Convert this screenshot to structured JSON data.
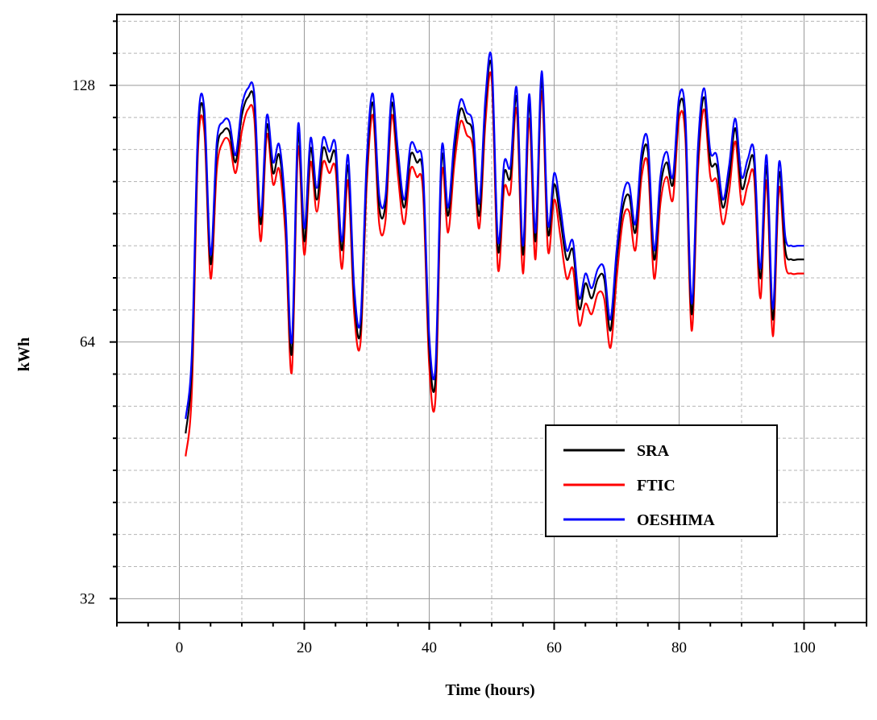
{
  "chart_data": {
    "type": "line",
    "title": "",
    "xlabel": "Time (hours)",
    "ylabel": "kWh",
    "xlim": [
      -10,
      110
    ],
    "ylim": [
      30,
      155
    ],
    "y_scale": "log2",
    "x_ticks": [
      "0",
      "20",
      "40",
      "60",
      "80",
      "100"
    ],
    "y_ticks": [
      "32",
      "64",
      "128"
    ],
    "grid": true,
    "legend_position": "bottom-right",
    "x": [
      1,
      2,
      3,
      4,
      5,
      6,
      7,
      8,
      9,
      10,
      11,
      12,
      13,
      14,
      15,
      16,
      17,
      18,
      19,
      20,
      21,
      22,
      23,
      24,
      25,
      26,
      27,
      28,
      29,
      30,
      31,
      32,
      33,
      34,
      35,
      36,
      37,
      38,
      39,
      40,
      41,
      42,
      43,
      44,
      45,
      46,
      47,
      48,
      49,
      50,
      51,
      52,
      53,
      54,
      55,
      56,
      57,
      58,
      59,
      60,
      61,
      62,
      63,
      64,
      65,
      66,
      67,
      68,
      69,
      70,
      71,
      72,
      73,
      74,
      75,
      76,
      77,
      78,
      79,
      80,
      81,
      82,
      83,
      84,
      85,
      86,
      87,
      88,
      89,
      90,
      91,
      92,
      93,
      94,
      95,
      96,
      97,
      98,
      99,
      100
    ],
    "series": [
      {
        "name": "SRA",
        "color": "#000000",
        "values": [
          50,
          60,
          112,
          117,
          79,
          107,
          113,
          113,
          104,
          118,
          124,
          122,
          88,
          115,
          101,
          106,
          89,
          62,
          112,
          84,
          108,
          94,
          108,
          104,
          106,
          82,
          103,
          72,
          66,
          102,
          122,
          92,
          93,
          122,
          104,
          92,
          106,
          104,
          100,
          63,
          58,
          105,
          90,
          107,
          120,
          116,
          112,
          90,
          121,
          134,
          82,
          101,
          100,
          124,
          81,
          122,
          84,
          130,
          86,
          98,
          89,
          80,
          82,
          70,
          75,
          72,
          76,
          76,
          66,
          80,
          92,
          95,
          86,
          104,
          107,
          80,
          97,
          104,
          98,
          121,
          115,
          69,
          105,
          124,
          104,
          103,
          92,
          100,
          114,
          97,
          102,
          104,
          76,
          103,
          68,
          101,
          82,
          80,
          80,
          80
        ]
      },
      {
        "name": "FTIC",
        "color": "#ff0000",
        "values": [
          47,
          56,
          108,
          113,
          76,
          102,
          110,
          110,
          101,
          113,
          120,
          117,
          84,
          112,
          98,
          102,
          85,
          59,
          108,
          81,
          104,
          91,
          104,
          101,
          102,
          78,
          99,
          69,
          64,
          98,
          118,
          88,
          89,
          118,
          100,
          88,
          102,
          100,
          96,
          60,
          55,
          101,
          86,
          103,
          116,
          112,
          108,
          87,
          116,
          130,
          78,
          97,
          96,
          120,
          77,
          117,
          80,
          126,
          82,
          94,
          85,
          76,
          78,
          67,
          71,
          69,
          73,
          72,
          63,
          76,
          89,
          91,
          82,
          100,
          103,
          76,
          93,
          100,
          94,
          117,
          111,
          66,
          101,
          120,
          100,
          99,
          88,
          96,
          110,
          93,
          98,
          100,
          72,
          99,
          65,
          97,
          79,
          77,
          77,
          77
        ]
      },
      {
        "name": "OESHIMA",
        "color": "#0000ff",
        "values": [
          52,
          62,
          115,
          120,
          81,
          110,
          116,
          116,
          106,
          121,
          127,
          125,
          90,
          118,
          104,
          109,
          91,
          64,
          115,
          87,
          111,
          97,
          111,
          107,
          109,
          84,
          106,
          74,
          68,
          105,
          125,
          95,
          95,
          125,
          107,
          94,
          109,
          107,
          102,
          65,
          60,
          108,
          92,
          110,
          123,
          119,
          115,
          93,
          124,
          137,
          84,
          104,
          103,
          127,
          83,
          125,
          86,
          133,
          88,
          101,
          92,
          82,
          84,
          72,
          77,
          74,
          78,
          78,
          68,
          82,
          95,
          98,
          88,
          107,
          110,
          82,
          100,
          107,
          100,
          124,
          118,
          71,
          108,
          127,
          107,
          106,
          94,
          103,
          117,
          100,
          105,
          107,
          78,
          106,
          70,
          104,
          85,
          83,
          83,
          83
        ]
      }
    ]
  }
}
